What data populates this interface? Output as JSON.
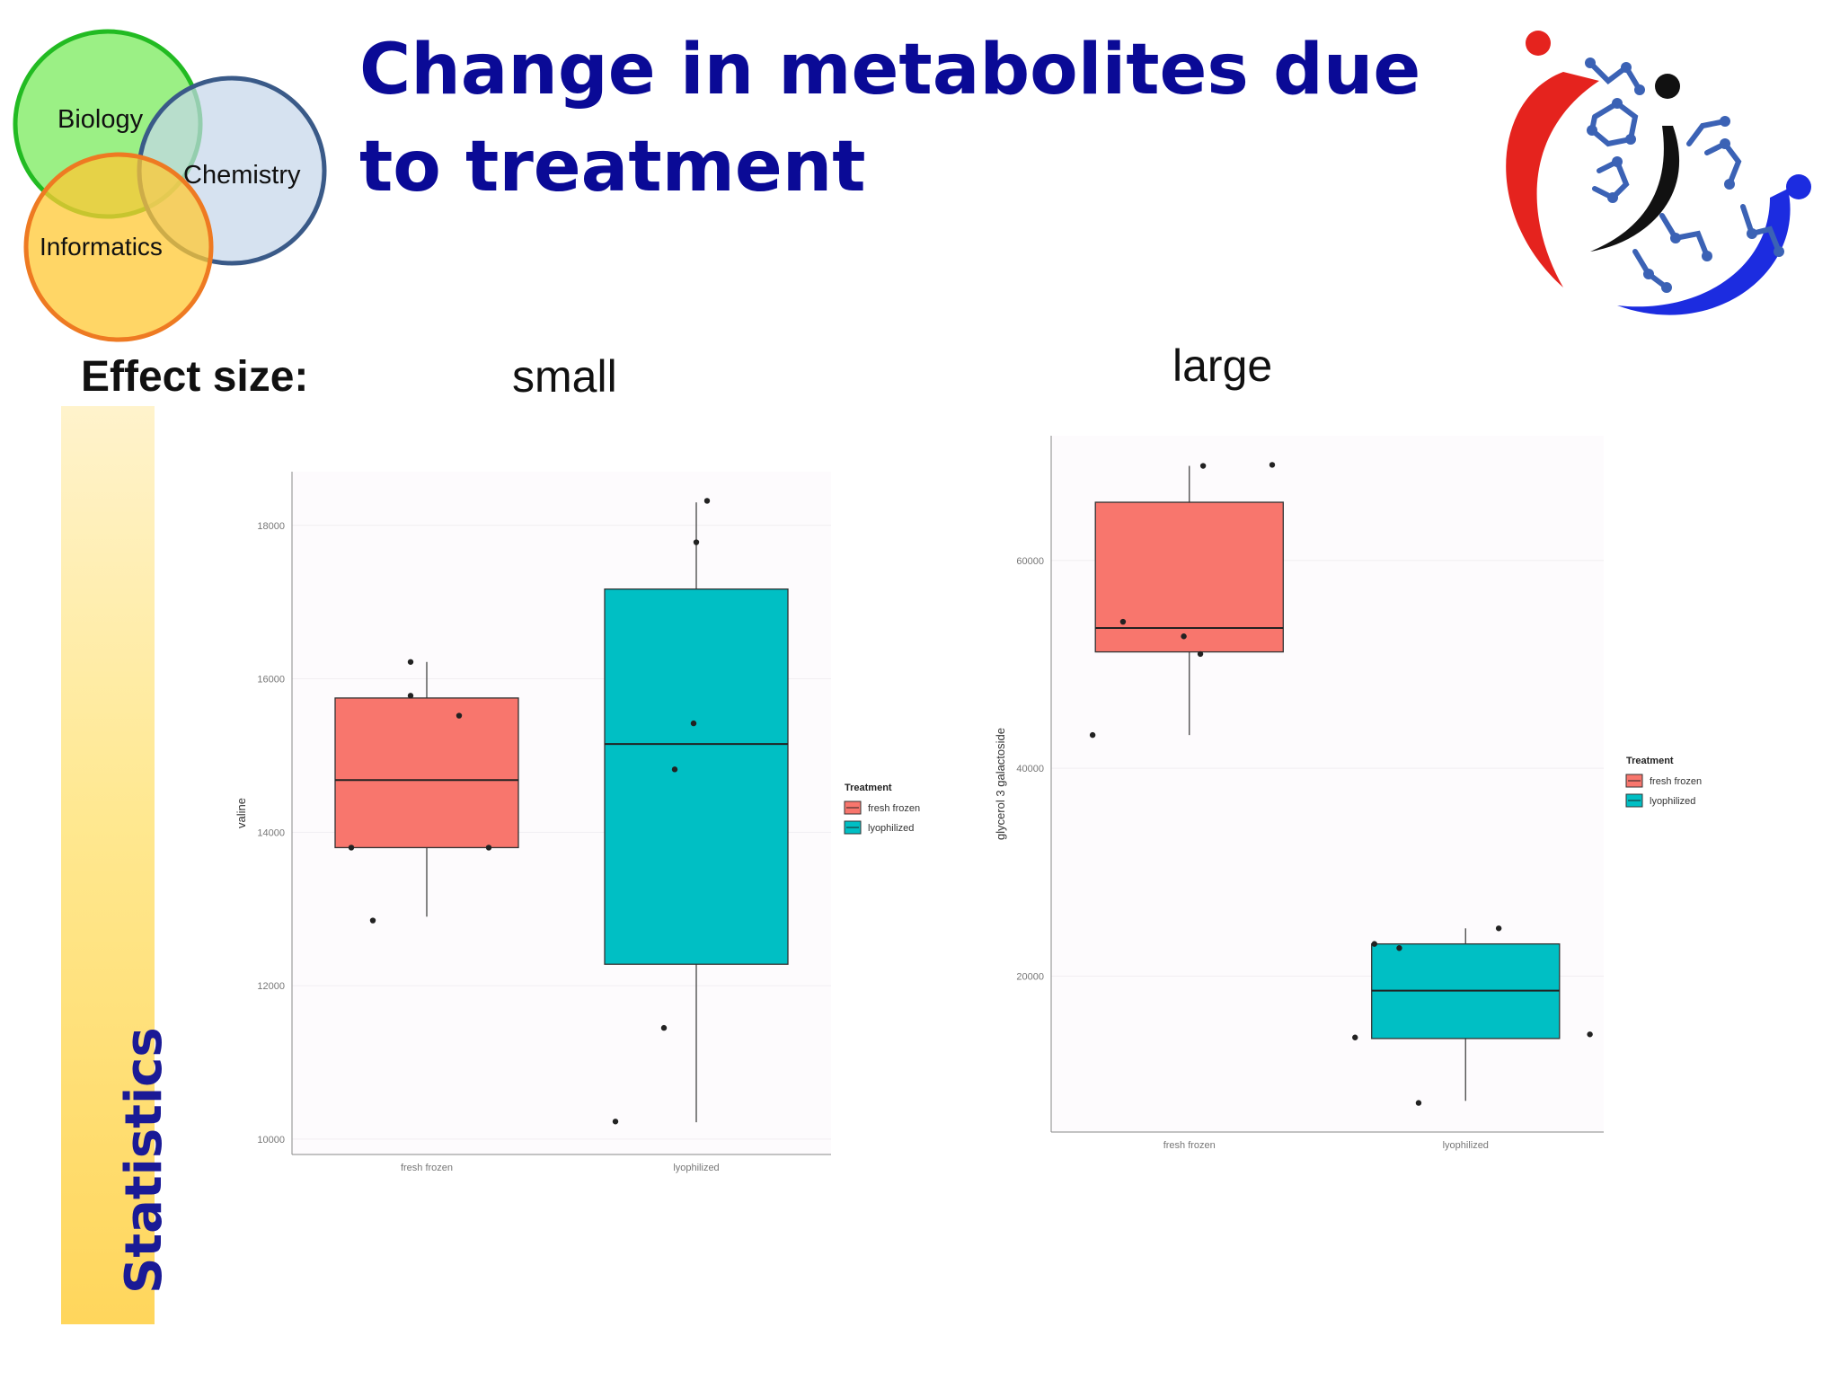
{
  "venn": {
    "biology": "Biology",
    "chemistry": "Chemistry",
    "informatics": "Informatics"
  },
  "title": "Change in metabolites due to treatment",
  "effect": {
    "label": "Effect size:",
    "small": "small",
    "large": "large"
  },
  "sidebar": {
    "statistics": "Statistics"
  },
  "colors": {
    "fresh_frozen": "#f8766d",
    "lyophilized": "#00bfc4",
    "title": "#0a0a96"
  },
  "chart_data": [
    {
      "type": "box",
      "title": "",
      "xlabel": "",
      "ylabel": "valine",
      "categories": [
        "fresh frozen",
        "lyophilized"
      ],
      "yticks": [
        10000,
        12000,
        14000,
        16000,
        18000
      ],
      "ylim": [
        9800,
        18700
      ],
      "grid": true,
      "legend": {
        "title": "Treatment",
        "position": "right",
        "entries": [
          "fresh frozen",
          "lyophilized"
        ]
      },
      "boxes": [
        {
          "category": "fresh frozen",
          "whisker_low": 12900,
          "q1": 13800,
          "median": 14680,
          "q3": 15750,
          "whisker_high": 16220
        },
        {
          "category": "lyophilized",
          "whisker_low": 10220,
          "q1": 12280,
          "median": 15150,
          "q3": 17170,
          "whisker_high": 18300
        }
      ],
      "points": [
        {
          "category": "fresh frozen",
          "offset": -0.28,
          "y": 13800
        },
        {
          "category": "fresh frozen",
          "offset": -0.2,
          "y": 12850
        },
        {
          "category": "fresh frozen",
          "offset": -0.06,
          "y": 16220
        },
        {
          "category": "fresh frozen",
          "offset": -0.06,
          "y": 15780
        },
        {
          "category": "fresh frozen",
          "offset": 0.12,
          "y": 15520
        },
        {
          "category": "fresh frozen",
          "offset": 0.23,
          "y": 13800
        },
        {
          "category": "lyophilized",
          "offset": -0.3,
          "y": 10230
        },
        {
          "category": "lyophilized",
          "offset": -0.12,
          "y": 11450
        },
        {
          "category": "lyophilized",
          "offset": -0.08,
          "y": 14820
        },
        {
          "category": "lyophilized",
          "offset": -0.01,
          "y": 15420
        },
        {
          "category": "lyophilized",
          "offset": 0.0,
          "y": 17780
        },
        {
          "category": "lyophilized",
          "offset": 0.04,
          "y": 18320
        }
      ]
    },
    {
      "type": "box",
      "title": "",
      "xlabel": "",
      "ylabel": "glycerol 3 galactoside",
      "categories": [
        "fresh frozen",
        "lyophilized"
      ],
      "yticks": [
        20000,
        40000,
        60000
      ],
      "ylim": [
        5000,
        72000
      ],
      "grid": true,
      "legend": {
        "title": "Treatment",
        "position": "right",
        "entries": [
          "fresh frozen",
          "lyophilized"
        ]
      },
      "boxes": [
        {
          "category": "fresh frozen",
          "whisker_low": 43200,
          "q1": 51200,
          "median": 53500,
          "q3": 65600,
          "whisker_high": 69100
        },
        {
          "category": "lyophilized",
          "whisker_low": 8000,
          "q1": 14000,
          "median": 18600,
          "q3": 23100,
          "whisker_high": 24600
        }
      ],
      "points": [
        {
          "category": "fresh frozen",
          "offset": -0.35,
          "y": 43200
        },
        {
          "category": "fresh frozen",
          "offset": -0.24,
          "y": 54100
        },
        {
          "category": "fresh frozen",
          "offset": -0.02,
          "y": 52700
        },
        {
          "category": "fresh frozen",
          "offset": 0.04,
          "y": 51000
        },
        {
          "category": "fresh frozen",
          "offset": 0.05,
          "y": 69100
        },
        {
          "category": "fresh frozen",
          "offset": 0.3,
          "y": 69200
        },
        {
          "category": "lyophilized",
          "offset": -0.4,
          "y": 14100
        },
        {
          "category": "lyophilized",
          "offset": -0.33,
          "y": 23100
        },
        {
          "category": "lyophilized",
          "offset": -0.24,
          "y": 22700
        },
        {
          "category": "lyophilized",
          "offset": -0.17,
          "y": 7800
        },
        {
          "category": "lyophilized",
          "offset": 0.12,
          "y": 24600
        },
        {
          "category": "lyophilized",
          "offset": 0.45,
          "y": 14400
        }
      ]
    }
  ]
}
